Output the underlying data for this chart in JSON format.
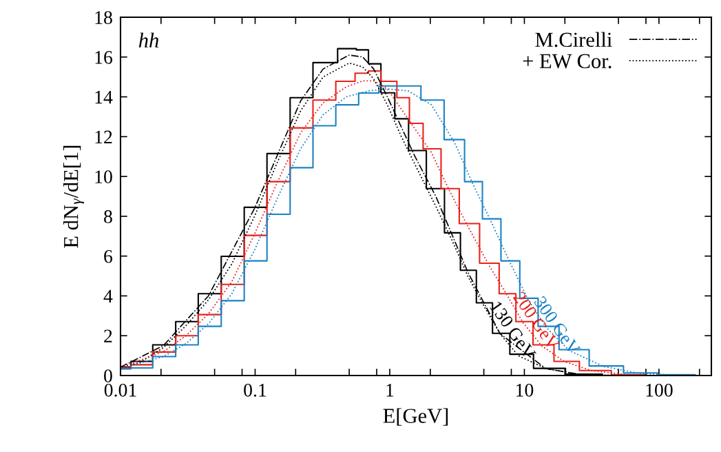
{
  "chart_data": {
    "type": "step",
    "xlabel": "E[GeV]",
    "ylabel": "E dN$_{γ}$/dE[1]",
    "annotations": [
      "hh"
    ],
    "log": "x",
    "xlim": [
      0.01,
      245
    ],
    "ylim": [
      0,
      18
    ],
    "xticks": [
      "0.01",
      {
        "value": 0.02,
        "label": null
      },
      {
        "value": 0.05,
        "label": null
      },
      {
        "value": 0.08,
        "label": null
      },
      {
        "value": 0.1,
        "label": "0.1"
      },
      {
        "value": 0.2,
        "label": null
      },
      {
        "value": 0.5,
        "label": null
      },
      {
        "value": 0.8,
        "label": null
      },
      {
        "value": 1,
        "label": "1"
      },
      {
        "value": 2,
        "label": null
      },
      {
        "value": 5,
        "label": null
      },
      {
        "value": 8,
        "label": null
      },
      {
        "value": 10,
        "label": "10"
      },
      {
        "value": 20,
        "label": null
      },
      {
        "value": 50,
        "label": null
      },
      {
        "value": 80,
        "label": null
      },
      {
        "value": 100,
        "label": "100"
      },
      {
        "value": 200,
        "label": null
      }
    ],
    "yticks": [
      0,
      2,
      4,
      6,
      8,
      10,
      12,
      14,
      16,
      18
    ],
    "grid": false,
    "legend": "top right",
    "series": [
      {
        "name": "130 GeV",
        "color": "#000000",
        "x": [
          0.01,
          0.0139,
          0.0208,
          0.0306,
          0.045,
          0.067,
          0.099,
          0.146,
          0.218,
          0.32,
          0.5,
          0.63,
          0.76,
          0.96,
          1.22,
          1.54,
          2.2,
          2.9,
          3.8,
          5.0,
          6.6,
          9.0,
          14.4,
          26,
          50,
          100
        ],
        "values": [
          0.42,
          0.71,
          1.54,
          2.71,
          4.11,
          5.99,
          8.45,
          11.15,
          13.96,
          15.72,
          16.42,
          16.36,
          15.66,
          14.2,
          12.9,
          11.3,
          9.39,
          7.17,
          5.29,
          3.65,
          2.12,
          1.07,
          0.36,
          0.07,
          0,
          0
        ]
      },
      {
        "name": "200 GeV",
        "color": "#e8211b",
        "x": [
          0.01,
          0.0139,
          0.0208,
          0.0306,
          0.045,
          0.067,
          0.099,
          0.146,
          0.218,
          0.32,
          0.475,
          0.63,
          0.76,
          0.96,
          1.3,
          1.5,
          2.04,
          2.77,
          3.8,
          5.5,
          7.5,
          9.8,
          13.4,
          19.8,
          31.5,
          57,
          100
        ],
        "values": [
          0.38,
          0.54,
          1.18,
          2.0,
          3.06,
          4.58,
          7.04,
          9.74,
          12.44,
          13.84,
          14.78,
          15.19,
          15.3,
          14.78,
          13.96,
          12.67,
          11.39,
          9.39,
          7.63,
          5.64,
          4.11,
          2.71,
          1.54,
          0.71,
          0.25,
          0.04,
          0
        ]
      },
      {
        "name": "300 GeV",
        "color": "#1a82c4",
        "x": [
          0.01,
          0.0139,
          0.0208,
          0.0306,
          0.045,
          0.067,
          0.099,
          0.146,
          0.218,
          0.32,
          0.475,
          0.7,
          0.96,
          1.37,
          2.04,
          3.03,
          4.16,
          5.6,
          7.8,
          10.7,
          14.6,
          21.6,
          39,
          70,
          126,
          245
        ],
        "values": [
          0.33,
          0.38,
          0.95,
          1.54,
          2.47,
          3.76,
          5.76,
          8.1,
          10.44,
          12.55,
          13.6,
          14.19,
          14.55,
          14.55,
          13.84,
          11.85,
          9.74,
          7.87,
          5.76,
          3.88,
          2.47,
          1.3,
          0.48,
          0.13,
          0.04,
          0
        ]
      },
      {
        "name": "M.Cirelli",
        "type": "line",
        "line_style": "dashdot",
        "color": "#000000",
        "x": [
          0.01,
          0.0208,
          0.045,
          0.099,
          0.218,
          0.32,
          0.5,
          0.63,
          0.76,
          0.96,
          1.54,
          2.2,
          3.8,
          6.6,
          14.4,
          26,
          50
        ],
        "values": [
          0.42,
          1.5,
          4.0,
          8.4,
          13.8,
          15.4,
          16.1,
          16.0,
          15.4,
          14.0,
          11.0,
          9.0,
          5.2,
          2.1,
          0.35,
          0.05,
          0
        ]
      },
      {
        "name": "+ EW Cor.",
        "type": "line",
        "line_style": "dotted",
        "color": "#000000",
        "x": [
          0.01,
          0.0139,
          0.0208,
          0.0306,
          0.045,
          0.067,
          0.099,
          0.146,
          0.218,
          0.32,
          0.5,
          0.63,
          0.76,
          0.96,
          1.22,
          1.54,
          2.2,
          2.9,
          3.8,
          5.0,
          6.6,
          9.0,
          14.4,
          26,
          50
        ],
        "values": [
          0.4,
          0.65,
          1.4,
          2.5,
          3.8,
          5.6,
          8.0,
          10.7,
          13.3,
          15.0,
          15.7,
          15.5,
          14.9,
          13.6,
          12.0,
          10.6,
          8.5,
          6.8,
          5.0,
          3.5,
          2.1,
          1.0,
          0.35,
          0.05,
          0
        ]
      },
      {
        "type": "line",
        "line_style": "dotted",
        "color": "#e8211b",
        "x": [
          0.01,
          0.0208,
          0.0306,
          0.045,
          0.067,
          0.099,
          0.146,
          0.218,
          0.32,
          0.475,
          0.63,
          0.76,
          0.96,
          1.5,
          2.04,
          2.77,
          3.8,
          5.5,
          7.5,
          9.8,
          13.4,
          19.8,
          31.5,
          57,
          100
        ],
        "values": [
          0.4,
          1.2,
          2.0,
          3.1,
          4.7,
          7.1,
          9.7,
          12.2,
          13.7,
          14.5,
          14.8,
          14.8,
          14.4,
          12.5,
          11.2,
          9.3,
          7.5,
          5.5,
          4.0,
          2.65,
          1.5,
          0.7,
          0.25,
          0.04,
          0
        ]
      },
      {
        "type": "line",
        "line_style": "dotted",
        "color": "#1a82c4",
        "x": [
          0.01,
          0.0208,
          0.0306,
          0.045,
          0.067,
          0.099,
          0.146,
          0.218,
          0.32,
          0.475,
          0.7,
          0.96,
          1.37,
          2.04,
          3.03,
          4.16,
          5.6,
          7.8,
          10.7,
          14.6,
          21.6,
          39,
          70,
          126,
          245
        ],
        "values": [
          0.35,
          0.95,
          1.6,
          2.6,
          4.1,
          6.3,
          8.9,
          11.4,
          13.1,
          14.0,
          14.3,
          14.4,
          14.3,
          13.6,
          11.7,
          9.6,
          7.8,
          5.7,
          3.8,
          2.4,
          1.25,
          0.45,
          0.12,
          0.02,
          0
        ]
      }
    ]
  }
}
